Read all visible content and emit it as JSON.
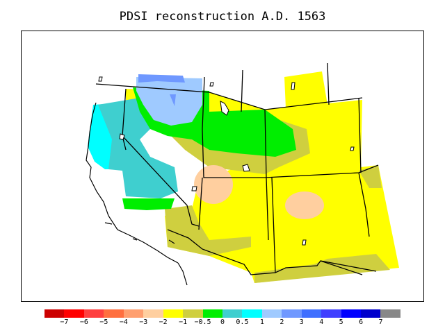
{
  "title": "PDSI reconstruction A.D. 1563",
  "map": {
    "region": "western United States",
    "fill_colors": {
      "light_blue": "#9fcaff",
      "blue": "#6f98ff",
      "cyan": "#00ffff",
      "teal": "#3fcfcf",
      "green": "#00ee00",
      "olive": "#cfcf3f",
      "yellow": "#ffff00",
      "peach": "#ffcf9f"
    }
  },
  "legend": {
    "colors": [
      "#cc0000",
      "#ff0000",
      "#ff3f3f",
      "#ff6f3f",
      "#ff9f6f",
      "#ffcf9f",
      "#ffff00",
      "#cfcf3f",
      "#00ee00",
      "#3fcfcf",
      "#00ffff",
      "#9fcaff",
      "#6f98ff",
      "#3f6fff",
      "#3f3fff",
      "#0000ff",
      "#0000cc",
      "#888888"
    ],
    "labels": [
      "−7",
      "−6",
      "−5",
      "−4",
      "−3",
      "−2",
      "−1",
      "−0.5",
      "0",
      "0.5",
      "1",
      "2",
      "3",
      "4",
      "5",
      "6",
      "7"
    ]
  }
}
